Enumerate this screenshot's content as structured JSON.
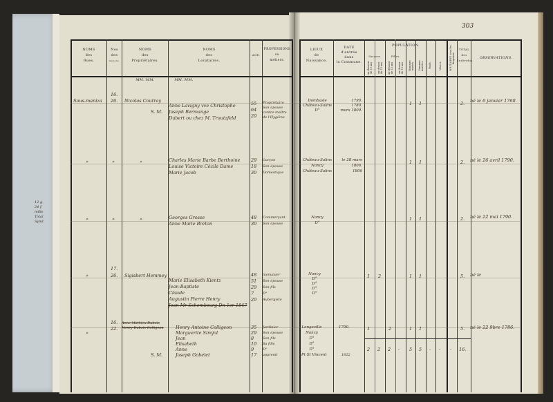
{
  "page_number": "303",
  "margin_note": [
    "12 g.",
    "24 f.",
    "mille",
    "Total",
    "Synd."
  ],
  "header": {
    "rues": [
      "NOMS",
      "des",
      "Rues."
    ],
    "maisons": [
      "Nos",
      "des",
      "maisons."
    ],
    "proprietaires": [
      "NOMS",
      "des",
      "Propriétaires."
    ],
    "locataires": [
      "NOMS",
      "des",
      "Locataires."
    ],
    "age": "AGE.",
    "professions": [
      "PROFESSIONS",
      "ou",
      "métiers."
    ],
    "lieux": [
      "LIEUX",
      "de",
      "Naissance."
    ],
    "date": [
      "DATE",
      "d'entrée",
      "dans",
      "la Commune."
    ],
    "population": "POPULATION.",
    "garcons": "Garçons.",
    "filles": "Filles.",
    "sub_au_dessous": "au-dessous de 15 ans",
    "sub_au_dessus": "au-dessus de 15 ans",
    "hommes_maries": "Hommes mariés.",
    "femmes_mariees": "Femmes mariées.",
    "veufs": "Veufs.",
    "veuves": "Veuves.",
    "militaires": "MILITAIRES sous les drapeaux.",
    "total": [
      "TOTAL",
      "des",
      "Individus."
    ],
    "observations": "OBSERVATIONS."
  },
  "subheads": {
    "proprietaires": "MM. MM.",
    "locataires": "MM. MM."
  },
  "entries": [
    {
      "rue": "Sous-maniza",
      "no_sup": "16.",
      "no": "26.",
      "proprietaire": "Nicolas Coutray",
      "note": "S. M.",
      "locataires": [
        "Anne Lavigny vve Christophe",
        "Joseph Bermange",
        "Dubert ou chez M. Troutzfeld"
      ],
      "ages": [
        "55",
        "64",
        "20"
      ],
      "professions": [
        "Propriétaire",
        "Son épouse",
        "contre-maître",
        "de l'Hygiène"
      ],
      "lieux": [
        "Dombasle",
        "Château-Salins",
        "D°"
      ],
      "dates": [
        "1790.",
        "1780.",
        "mars 1809."
      ],
      "pop": [
        "",
        "",
        "",
        "",
        "1",
        "1",
        "",
        ""
      ],
      "total": "2.",
      "observation": "né le 6 janvier 1760."
    },
    {
      "rue": "»",
      "no": "»",
      "proprietaire": "»",
      "locataires": [
        "Charles Marie Barbe Berthoine",
        "Louise Victoire Cécile Dame",
        "Marie Jacob"
      ],
      "ages": [
        "29",
        "18",
        "30"
      ],
      "professions": [
        "Garçon",
        "Son épouse",
        "Domestique"
      ],
      "lieux": [
        "Château-Salins",
        "Nancy",
        "Château-Salins"
      ],
      "dates": [
        "le 28 mars",
        "1806.",
        "1806"
      ],
      "pop": [
        "",
        "",
        "",
        "",
        "1",
        "1",
        "",
        ""
      ],
      "total": "2.",
      "observation": "né le 26 avril 1790."
    },
    {
      "rue": "»",
      "no": "»",
      "proprietaire": "»",
      "locataires": [
        "Georges Grosse",
        "Anne Marie Breton"
      ],
      "ages": [
        "48",
        "30"
      ],
      "professions": [
        "Commerçant",
        "Son épouse"
      ],
      "lieux": [
        "Nancy",
        "D°"
      ],
      "dates": [],
      "pop": [
        "",
        "",
        "",
        "",
        "1",
        "1",
        "",
        ""
      ],
      "total": "2.",
      "observation": "né le 22 mai 1790."
    },
    {
      "rue": "»",
      "no_sup": "17.",
      "no": "26.",
      "proprietaire": "Sigisbert Hemmey",
      "locataires": [
        "Marie Elisabeth Kientz",
        "Jean-Baptiste",
        "Claude",
        "Augustin Pierre Henry",
        "Jean Mr Schembeurg Dn 1er 1847"
      ],
      "ages": [
        "48",
        "51",
        "20",
        "7",
        "20"
      ],
      "professions": [
        "menuisier",
        "Son épouse",
        "Son fils",
        "D°",
        "Aubergiste"
      ],
      "lieux": [
        "Nancy",
        "D°",
        "D°",
        "D°",
        "D°"
      ],
      "dates": [],
      "pop": [
        "1",
        "2",
        "",
        "",
        "1",
        "1",
        "",
        ""
      ],
      "total": "5.",
      "observation": "né le"
    },
    {
      "rue": "»",
      "no_sup": "16.",
      "no": "22.",
      "proprietaire_struck": [
        "Anne Mathieu Dubois",
        "Henry Dubois-Colligeon"
      ],
      "note": "S. M.",
      "locataires": [
        "Henry Antoine Colligeon",
        "Marguerite Sirejol",
        "Jean",
        "Elisabeth",
        "Anne",
        "Joseph Gobelet"
      ],
      "ages": [
        "35",
        "29",
        "8",
        "10",
        "9",
        "17"
      ],
      "professions": [
        "Jardinier",
        "Son épouse",
        "Son fils",
        "Sa fille",
        "D°",
        "apprenti"
      ],
      "lieux": [
        "Longeville",
        "Nancy",
        "D°",
        "D°",
        "D°",
        "Pt St Vincent"
      ],
      "dates": [
        "1790.",
        "1822"
      ],
      "pop": [
        "1",
        "",
        "2",
        "",
        "1",
        "1",
        "",
        ""
      ],
      "total": "5.",
      "observation": "né le 22 9bre 1786."
    }
  ],
  "page_totals": {
    "pop": [
      "2",
      "2",
      "2",
      "-",
      "5",
      "5",
      "-",
      "-",
      "-"
    ],
    "total": "16."
  }
}
